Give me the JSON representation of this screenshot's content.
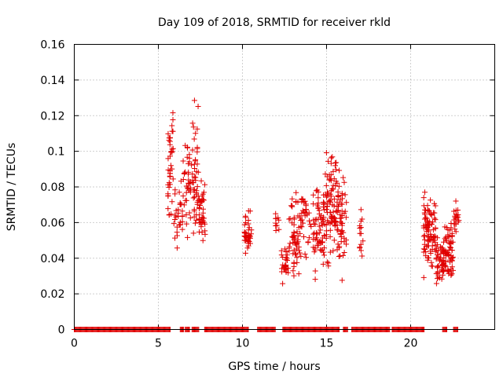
{
  "chart_data": {
    "type": "scatter",
    "title": "Day 109 of 2018, SRMTID for receiver rkld",
    "xlabel": "GPS time / hours",
    "ylabel": "SRMTID / TECUs",
    "xlim": [
      0,
      25
    ],
    "ylim": [
      0,
      0.16
    ],
    "xticks": [
      0,
      5,
      10,
      15,
      20
    ],
    "yticks": [
      0,
      0.02,
      0.04,
      0.06,
      0.08,
      0.1,
      0.12,
      0.14,
      0.16
    ],
    "ytick_labels": [
      "0",
      "0.02",
      "0.04",
      "0.06",
      "0.08",
      "0.1",
      "0.12",
      "0.14",
      "0.16"
    ],
    "grid": true,
    "marker": "+",
    "color": "#e00000",
    "zero_segments": [
      [
        0.0,
        5.7
      ],
      [
        6.3,
        6.5
      ],
      [
        6.6,
        6.85
      ],
      [
        7.0,
        7.4
      ],
      [
        7.75,
        10.4
      ],
      [
        10.9,
        12.0
      ],
      [
        12.4,
        15.8
      ],
      [
        16.0,
        16.3
      ],
      [
        16.5,
        18.8
      ],
      [
        18.9,
        20.85
      ],
      [
        21.9,
        22.2
      ],
      [
        22.55,
        22.85
      ]
    ],
    "bursts": [
      {
        "x0": 5.55,
        "x1": 5.9,
        "n": 40,
        "ymin": 0.035,
        "ymax": 0.145,
        "seed": 11
      },
      {
        "x0": 5.9,
        "x1": 6.45,
        "n": 30,
        "ymin": 0.04,
        "ymax": 0.085,
        "seed": 12
      },
      {
        "x0": 6.45,
        "x1": 7.0,
        "n": 36,
        "ymin": 0.045,
        "ymax": 0.125,
        "seed": 13
      },
      {
        "x0": 7.0,
        "x1": 7.4,
        "n": 45,
        "ymin": 0.028,
        "ymax": 0.133,
        "seed": 14
      },
      {
        "x0": 7.4,
        "x1": 7.8,
        "n": 38,
        "ymin": 0.04,
        "ymax": 0.095,
        "seed": 15
      },
      {
        "x0": 10.1,
        "x1": 10.55,
        "n": 40,
        "ymin": 0.04,
        "ymax": 0.069,
        "seed": 21
      },
      {
        "x0": 11.95,
        "x1": 12.2,
        "n": 10,
        "ymin": 0.045,
        "ymax": 0.068,
        "seed": 22
      },
      {
        "x0": 12.3,
        "x1": 12.75,
        "n": 28,
        "ymin": 0.022,
        "ymax": 0.05,
        "seed": 23
      },
      {
        "x0": 12.75,
        "x1": 13.5,
        "n": 60,
        "ymin": 0.02,
        "ymax": 0.088,
        "seed": 24
      },
      {
        "x0": 13.5,
        "x1": 14.3,
        "n": 40,
        "ymin": 0.035,
        "ymax": 0.088,
        "seed": 25
      },
      {
        "x0": 14.3,
        "x1": 14.9,
        "n": 60,
        "ymin": 0.018,
        "ymax": 0.094,
        "seed": 26
      },
      {
        "x0": 14.9,
        "x1": 15.6,
        "n": 80,
        "ymin": 0.025,
        "ymax": 0.113,
        "seed": 27
      },
      {
        "x0": 15.6,
        "x1": 16.2,
        "n": 60,
        "ymin": 0.025,
        "ymax": 0.1,
        "seed": 28
      },
      {
        "x0": 16.95,
        "x1": 17.2,
        "n": 14,
        "ymin": 0.034,
        "ymax": 0.076,
        "seed": 29
      },
      {
        "x0": 20.75,
        "x1": 21.5,
        "n": 90,
        "ymin": 0.025,
        "ymax": 0.086,
        "seed": 31
      },
      {
        "x0": 21.5,
        "x1": 22.0,
        "n": 50,
        "ymin": 0.02,
        "ymax": 0.056,
        "seed": 32
      },
      {
        "x0": 22.0,
        "x1": 22.55,
        "n": 60,
        "ymin": 0.02,
        "ymax": 0.068,
        "seed": 33
      },
      {
        "x0": 22.55,
        "x1": 22.9,
        "n": 20,
        "ymin": 0.048,
        "ymax": 0.075,
        "seed": 34
      }
    ]
  }
}
